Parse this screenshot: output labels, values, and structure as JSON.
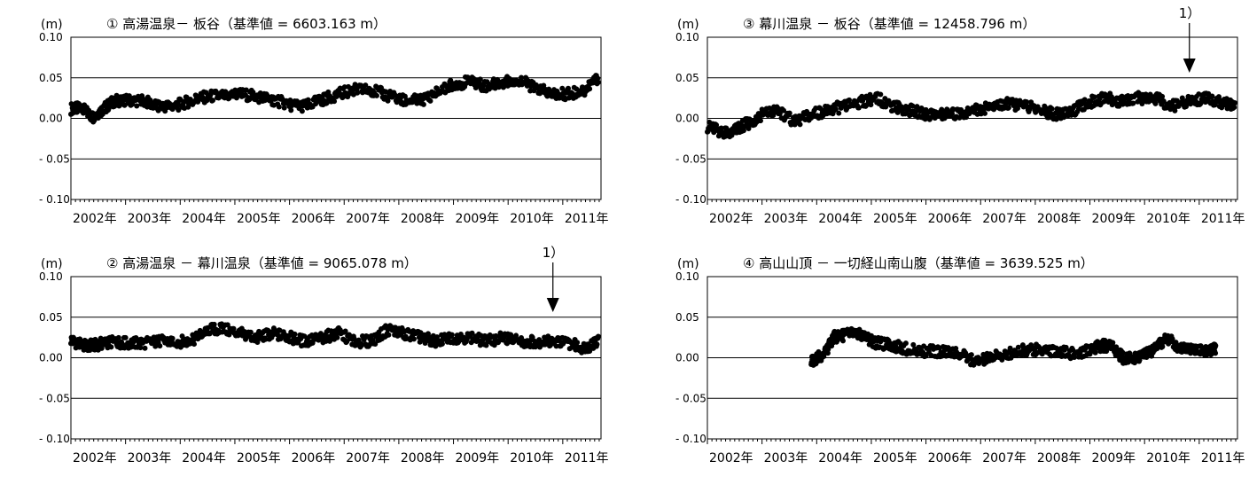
{
  "chart_data": [
    {
      "type": "scatter",
      "title": "① 高湯温泉－ 板谷（基準値 = 6603.163 m）",
      "ylabel": "(m)",
      "y_ticks": [
        "0.10",
        "0.05",
        "0.00",
        "- 0.05",
        "- 0.10"
      ],
      "y_tick_values": [
        0.1,
        0.05,
        0.0,
        -0.05,
        -0.1
      ],
      "x_ticks": [
        "2002年",
        "2003年",
        "2004年",
        "2005年",
        "2006年",
        "2007年",
        "2008年",
        "2009年",
        "2010年",
        "2011年"
      ],
      "xlim": [
        2002.0,
        2011.7
      ],
      "ylim": [
        -0.1,
        0.1
      ],
      "grid": "horizontal",
      "marker_color": "#000000",
      "annotation": "",
      "annotation_x": null,
      "series": [
        {
          "x": [
            2002.0,
            2002.2,
            2002.4,
            2002.6,
            2002.8,
            2003.0,
            2003.3,
            2003.6,
            2003.9,
            2004.2,
            2004.5,
            2004.8,
            2005.1,
            2005.4,
            2005.7,
            2006.0,
            2006.3,
            2006.6,
            2006.9,
            2007.2,
            2007.5,
            2007.8,
            2008.1,
            2008.4,
            2008.7,
            2009.0,
            2009.3,
            2009.6,
            2009.9,
            2010.2,
            2010.5,
            2010.8,
            2011.1,
            2011.4,
            2011.65
          ],
          "y": [
            0.012,
            0.012,
            0.002,
            0.012,
            0.022,
            0.022,
            0.022,
            0.015,
            0.015,
            0.022,
            0.027,
            0.028,
            0.03,
            0.027,
            0.023,
            0.017,
            0.015,
            0.023,
            0.03,
            0.035,
            0.035,
            0.028,
            0.022,
            0.022,
            0.032,
            0.042,
            0.045,
            0.04,
            0.045,
            0.048,
            0.037,
            0.03,
            0.03,
            0.035,
            0.05
          ]
        }
      ]
    },
    {
      "type": "scatter",
      "title": "② 高湯温泉 － 幕川温泉（基準値 = 9065.078 m）",
      "ylabel": "(m)",
      "y_ticks": [
        "0.10",
        "0.05",
        "0.00",
        "- 0.05",
        "- 0.10"
      ],
      "y_tick_values": [
        0.1,
        0.05,
        0.0,
        -0.05,
        -0.1
      ],
      "x_ticks": [
        "2002年",
        "2003年",
        "2004年",
        "2005年",
        "2006年",
        "2007年",
        "2008年",
        "2009年",
        "2010年",
        "2011年"
      ],
      "xlim": [
        2002.0,
        2011.7
      ],
      "ylim": [
        -0.1,
        0.1
      ],
      "grid": "horizontal",
      "marker_color": "#000000",
      "annotation": "1）",
      "annotation_x": 2010.82,
      "series": [
        {
          "x": [
            2002.0,
            2002.2,
            2002.4,
            2002.6,
            2002.8,
            2003.0,
            2003.3,
            2003.6,
            2003.9,
            2004.2,
            2004.5,
            2004.8,
            2005.1,
            2005.4,
            2005.7,
            2006.0,
            2006.3,
            2006.6,
            2006.9,
            2007.2,
            2007.5,
            2007.8,
            2008.1,
            2008.4,
            2008.7,
            2009.0,
            2009.3,
            2009.6,
            2009.9,
            2010.2,
            2010.5,
            2010.8,
            2011.1,
            2011.4,
            2011.65
          ],
          "y": [
            0.022,
            0.015,
            0.015,
            0.018,
            0.02,
            0.018,
            0.018,
            0.02,
            0.02,
            0.02,
            0.035,
            0.035,
            0.03,
            0.025,
            0.03,
            0.025,
            0.02,
            0.025,
            0.03,
            0.02,
            0.02,
            0.035,
            0.03,
            0.025,
            0.02,
            0.025,
            0.025,
            0.02,
            0.025,
            0.02,
            0.02,
            0.02,
            0.018,
            0.012,
            0.02
          ]
        }
      ]
    },
    {
      "type": "scatter",
      "title": "③ 幕川温泉 － 板谷（基準値 = 12458.796 m）",
      "ylabel": "(m)",
      "y_ticks": [
        "0.10",
        "0.05",
        "0.00",
        "- 0.05",
        "- 0.10"
      ],
      "y_tick_values": [
        0.1,
        0.05,
        0.0,
        -0.05,
        -0.1
      ],
      "x_ticks": [
        "2002年",
        "2003年",
        "2004年",
        "2005年",
        "2006年",
        "2007年",
        "2008年",
        "2009年",
        "2010年",
        "2011年"
      ],
      "xlim": [
        2002.0,
        2011.7
      ],
      "ylim": [
        -0.1,
        0.1
      ],
      "grid": "horizontal",
      "marker_color": "#000000",
      "annotation": "1）",
      "annotation_x": 2010.82,
      "series": [
        {
          "x": [
            2002.0,
            2002.2,
            2002.4,
            2002.6,
            2002.8,
            2003.0,
            2003.3,
            2003.6,
            2003.9,
            2004.2,
            2004.5,
            2004.8,
            2005.1,
            2005.4,
            2005.7,
            2006.0,
            2006.3,
            2006.6,
            2006.9,
            2007.2,
            2007.5,
            2007.8,
            2008.1,
            2008.4,
            2008.7,
            2009.0,
            2009.3,
            2009.6,
            2009.9,
            2010.2,
            2010.5,
            2010.8,
            2011.1,
            2011.4,
            2011.65
          ],
          "y": [
            -0.01,
            -0.015,
            -0.02,
            -0.01,
            -0.005,
            0.005,
            0.01,
            -0.005,
            0.005,
            0.01,
            0.015,
            0.02,
            0.025,
            0.015,
            0.01,
            0.005,
            0.005,
            0.005,
            0.01,
            0.015,
            0.018,
            0.015,
            0.01,
            0.005,
            0.01,
            0.02,
            0.025,
            0.02,
            0.025,
            0.025,
            0.015,
            0.02,
            0.025,
            0.02,
            0.015
          ]
        }
      ]
    },
    {
      "type": "scatter",
      "title": "④ 高山山頂 － 一切経山南山腹（基準値 = 3639.525 m）",
      "ylabel": "(m)",
      "y_ticks": [
        "0.10",
        "0.05",
        "0.00",
        "- 0.05",
        "- 0.10"
      ],
      "y_tick_values": [
        0.1,
        0.05,
        0.0,
        -0.05,
        -0.1
      ],
      "x_ticks": [
        "2002年",
        "2003年",
        "2004年",
        "2005年",
        "2006年",
        "2007年",
        "2008年",
        "2009年",
        "2010年",
        "2011年"
      ],
      "xlim": [
        2002.0,
        2011.7
      ],
      "ylim": [
        -0.1,
        0.1
      ],
      "grid": "horizontal",
      "marker_color": "#000000",
      "annotation": "",
      "annotation_x": null,
      "series": [
        {
          "x": [
            2003.9,
            2004.0,
            2004.15,
            2004.3,
            2004.5,
            2004.7,
            2004.9,
            2005.1,
            2005.4,
            2005.7,
            2006.0,
            2006.3,
            2006.6,
            2006.9,
            2007.2,
            2007.5,
            2007.8,
            2008.1,
            2008.4,
            2008.7,
            2009.0,
            2009.2,
            2009.4,
            2009.6,
            2009.8,
            2010.0,
            2010.2,
            2010.4,
            2010.6,
            2010.8,
            2010.95,
            2011.2,
            2011.3
          ],
          "y": [
            -0.005,
            0.0,
            0.005,
            0.025,
            0.028,
            0.03,
            0.025,
            0.018,
            0.015,
            0.01,
            0.008,
            0.008,
            0.005,
            -0.005,
            0.0,
            0.005,
            0.01,
            0.01,
            0.008,
            0.005,
            0.01,
            0.015,
            0.015,
            0.0,
            0.0,
            0.005,
            0.01,
            0.025,
            0.015,
            0.012,
            0.01,
            0.01,
            0.01
          ]
        }
      ]
    }
  ]
}
